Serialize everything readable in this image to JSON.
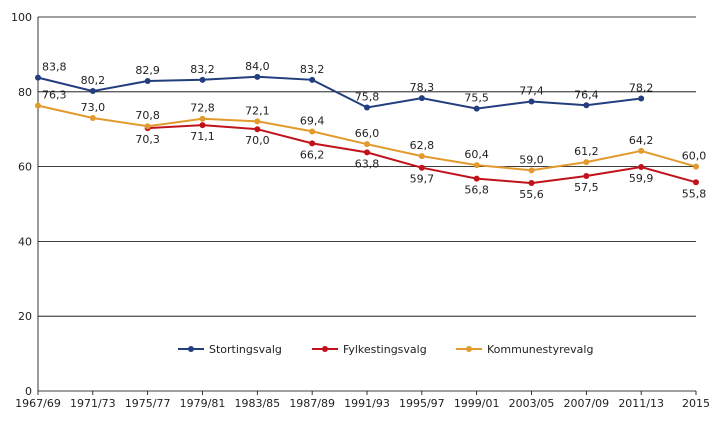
{
  "chart_data": {
    "type": "line",
    "title": "",
    "xlabel": "",
    "ylabel": "",
    "ylim": [
      0,
      100
    ],
    "y_ticks": [
      "0",
      "20",
      "40",
      "60",
      "80",
      "100"
    ],
    "grid": true,
    "legend_position": "center",
    "categories": [
      "1967/69",
      "1971/73",
      "1975/77",
      "1979/81",
      "1983/85",
      "1987/89",
      "1991/93",
      "1995/97",
      "1999/01",
      "2003/05",
      "2007/09",
      "2011/13",
      "2015"
    ],
    "series": [
      {
        "name": "Stortingsvalg",
        "color": "#233e7e",
        "values": [
          83.8,
          80.2,
          82.9,
          83.2,
          84.0,
          83.2,
          75.8,
          78.3,
          75.5,
          77.4,
          76.4,
          78.2,
          null
        ],
        "labels": [
          "83,8",
          "80,2",
          "82,9",
          "83,2",
          "84,0",
          "83,2",
          "75,8",
          "78,3",
          "75,5",
          "77,4",
          "76,4",
          "78,2",
          null
        ]
      },
      {
        "name": "Fylkestingsvalg",
        "color": "#c1121c",
        "values": [
          null,
          null,
          70.3,
          71.1,
          70.0,
          66.2,
          63.8,
          59.7,
          56.8,
          55.6,
          57.5,
          59.9,
          55.8
        ],
        "labels": [
          null,
          null,
          "70,3",
          "71,1",
          "70,0",
          "66,2",
          "63,8",
          "59,7",
          "56,8",
          "55,6",
          "57,5",
          "59,9",
          "55,8"
        ]
      },
      {
        "name": "Kommunestyrevalg",
        "color": "#e39a2c",
        "values": [
          76.3,
          73.0,
          70.8,
          72.8,
          72.1,
          69.4,
          66.0,
          62.8,
          60.4,
          59.0,
          61.2,
          64.2,
          60.0
        ],
        "labels": [
          "76,3",
          "73,0",
          "70,8",
          "72,8",
          "72,1",
          "69,4",
          "66,0",
          "62,8",
          "60,4",
          "59,0",
          "61,2",
          "64,2",
          "60,0"
        ]
      }
    ]
  }
}
